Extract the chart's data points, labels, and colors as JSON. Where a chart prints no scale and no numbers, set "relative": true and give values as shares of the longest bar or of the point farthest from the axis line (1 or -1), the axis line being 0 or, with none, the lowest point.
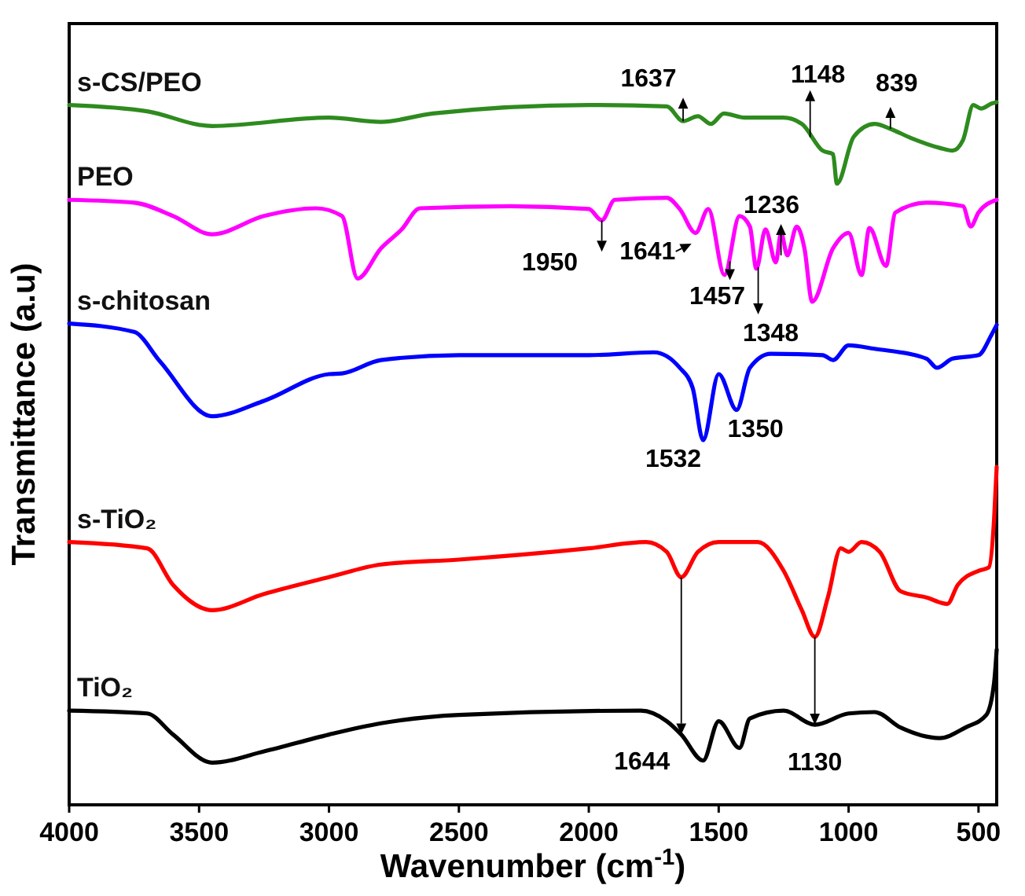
{
  "chart_data": {
    "type": "line",
    "xlabel": "Wavenumber (cm$^{-1}$)",
    "ylabel": "Transmittance (a.u)",
    "relative": true,
    "xlim": [
      4000,
      430
    ],
    "xticks": [
      4000,
      3500,
      3000,
      2500,
      2000,
      1500,
      1000,
      500
    ],
    "series": [
      {
        "name": "s-CS/PEO",
        "color": "#2e8b1e",
        "x": [
          4000,
          3700,
          3450,
          3000,
          2800,
          2600,
          2000,
          1700,
          1637,
          1580,
          1530,
          1480,
          1400,
          1250,
          1180,
          1100,
          1060,
          1045,
          980,
          900,
          839,
          760,
          650,
          600,
          560,
          520,
          490,
          450,
          430
        ],
        "values": [
          0.996,
          0.987,
          0.966,
          0.978,
          0.972,
          0.984,
          0.996,
          0.994,
          0.973,
          0.98,
          0.969,
          0.984,
          0.978,
          0.978,
          0.969,
          0.931,
          0.926,
          0.884,
          0.951,
          0.969,
          0.962,
          0.949,
          0.935,
          0.931,
          0.946,
          0.996,
          0.991,
          0.998,
          1
        ]
      },
      {
        "name": "PEO",
        "color": "#ff00ff",
        "x": [
          4000,
          3750,
          3600,
          3450,
          3250,
          3050,
          2950,
          2890,
          2800,
          2720,
          2650,
          2300,
          2000,
          1950,
          1900,
          1700,
          1650,
          1589,
          1540,
          1478,
          1420,
          1380,
          1355,
          1320,
          1280,
          1260,
          1236,
          1200,
          1170,
          1140,
          1060,
          1000,
          950,
          920,
          856,
          820,
          700,
          560,
          530,
          500,
          430
        ],
        "values": [
          0.861,
          0.857,
          0.838,
          0.812,
          0.838,
          0.849,
          0.838,
          0.749,
          0.792,
          0.819,
          0.849,
          0.852,
          0.848,
          0.832,
          0.861,
          0.864,
          0.848,
          0.814,
          0.848,
          0.754,
          0.838,
          0.823,
          0.763,
          0.819,
          0.772,
          0.814,
          0.782,
          0.823,
          0.792,
          0.716,
          0.792,
          0.814,
          0.754,
          0.821,
          0.767,
          0.843,
          0.857,
          0.852,
          0.823,
          0.843,
          0.861
        ]
      },
      {
        "name": "s-chitosan",
        "color": "#0000ff",
        "x": [
          4000,
          3750,
          3650,
          3450,
          3250,
          3000,
          2950,
          2800,
          2500,
          2000,
          1750,
          1650,
          1600,
          1560,
          1500,
          1431,
          1380,
          1300,
          1100,
          1060,
          1000,
          900,
          700,
          660,
          600,
          500,
          450,
          430
        ],
        "values": [
          0.685,
          0.673,
          0.631,
          0.553,
          0.575,
          0.613,
          0.614,
          0.633,
          0.64,
          0.64,
          0.644,
          0.622,
          0.593,
          0.519,
          0.613,
          0.562,
          0.622,
          0.642,
          0.64,
          0.633,
          0.654,
          0.649,
          0.635,
          0.622,
          0.635,
          0.64,
          0.669,
          0.683
        ]
      },
      {
        "name": "s-TiO₂",
        "color": "#ff0000",
        "x": [
          4000,
          3700,
          3600,
          3450,
          3250,
          3000,
          2800,
          2500,
          2000,
          1780,
          1700,
          1644,
          1580,
          1500,
          1350,
          1250,
          1180,
          1130,
          1080,
          1030,
          1000,
          950,
          880,
          800,
          700,
          620,
          580,
          500,
          460,
          440,
          430
        ],
        "values": [
          0.374,
          0.365,
          0.313,
          0.277,
          0.3,
          0.324,
          0.342,
          0.349,
          0.365,
          0.374,
          0.36,
          0.324,
          0.36,
          0.374,
          0.374,
          0.333,
          0.277,
          0.239,
          0.295,
          0.365,
          0.36,
          0.374,
          0.36,
          0.304,
          0.295,
          0.286,
          0.313,
          0.333,
          0.338,
          0.407,
          0.481
        ]
      },
      {
        "name": "TiO₂",
        "color": "#000000",
        "x": [
          4000,
          3700,
          3600,
          3450,
          3250,
          3000,
          2800,
          2500,
          1800,
          1700,
          1644,
          1560,
          1500,
          1420,
          1380,
          1250,
          1130,
          1000,
          900,
          800,
          650,
          550,
          470,
          440,
          430
        ],
        "values": [
          0.134,
          0.13,
          0.1,
          0.06,
          0.076,
          0.1,
          0.116,
          0.128,
          0.134,
          0.119,
          0.1,
          0.063,
          0.119,
          0.081,
          0.123,
          0.134,
          0.114,
          0.13,
          0.132,
          0.11,
          0.095,
          0.11,
          0.128,
          0.174,
          0.221
        ]
      }
    ],
    "annotations": [
      {
        "text": "1637",
        "x": 1637,
        "y": 0.973
      },
      {
        "text": "1148",
        "x": 1148,
        "y": 0.95
      },
      {
        "text": "839",
        "x": 839,
        "y": 0.962
      },
      {
        "text": "1950",
        "x": 1950,
        "y": 0.832
      },
      {
        "text": "1641",
        "x": 1641,
        "y": 0.848
      },
      {
        "text": "1457",
        "x": 1457,
        "y": 0.76
      },
      {
        "text": "1236",
        "x": 1236,
        "y": 0.782
      },
      {
        "text": "1348",
        "x": 1348,
        "y": 0.765
      },
      {
        "text": "1532",
        "x": 1560,
        "y": 0.519
      },
      {
        "text": "1350",
        "x": 1431,
        "y": 0.562
      },
      {
        "text": "1644",
        "x": 1644,
        "y": 0.1
      },
      {
        "text": "1130",
        "x": 1130,
        "y": 0.114
      }
    ]
  }
}
